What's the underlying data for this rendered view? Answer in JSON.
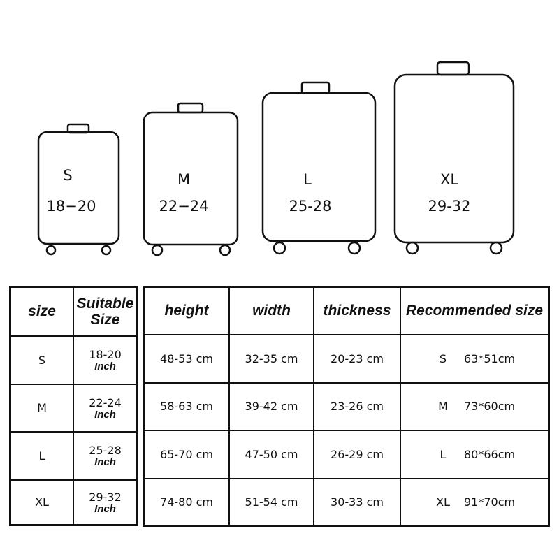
{
  "suitcases": [
    {
      "size": "S",
      "range": "18−20"
    },
    {
      "size": "M",
      "range": "22−24"
    },
    {
      "size": "L",
      "range": "25-28"
    },
    {
      "size": "XL",
      "range": "29-32"
    }
  ],
  "left_table": {
    "headers": [
      "size",
      "Suitable Size"
    ],
    "inch_label": "Inch",
    "rows": [
      {
        "size": "S",
        "suitable": "18-20"
      },
      {
        "size": "M",
        "suitable": "22-24"
      },
      {
        "size": "L",
        "suitable": "25-28"
      },
      {
        "size": "XL",
        "suitable": "29-32"
      }
    ]
  },
  "right_table": {
    "headers": [
      "height",
      "width",
      "thickness",
      "Recommended size"
    ],
    "rows": [
      {
        "height": "48-53 cm",
        "width": "32-35 cm",
        "thickness": "20-23 cm",
        "rec_size": "S",
        "rec_dim": "63*51cm"
      },
      {
        "height": "58-63 cm",
        "width": "39-42 cm",
        "thickness": "23-26 cm",
        "rec_size": "M",
        "rec_dim": "73*60cm"
      },
      {
        "height": "65-70 cm",
        "width": "47-50 cm",
        "thickness": "26-29 cm",
        "rec_size": "L",
        "rec_dim": "80*66cm"
      },
      {
        "height": "74-80 cm",
        "width": "51-54 cm",
        "thickness": "30-33 cm",
        "rec_size": "XL",
        "rec_dim": "91*70cm"
      }
    ]
  }
}
